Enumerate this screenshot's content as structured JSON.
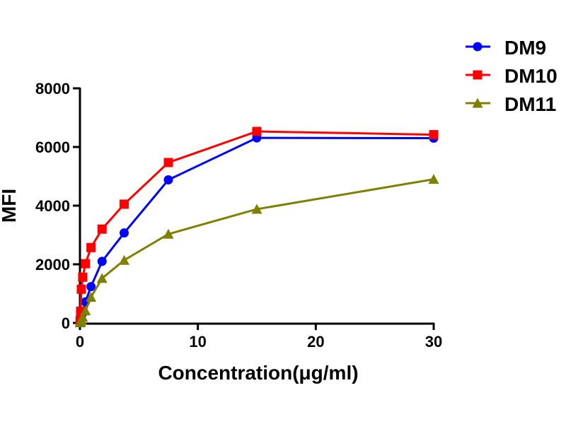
{
  "chart_data": {
    "type": "line",
    "title": "",
    "xlabel": "Concentration(μg/ml)",
    "ylabel": "MFI",
    "xlim": [
      0,
      30
    ],
    "ylim": [
      0,
      8000
    ],
    "xticks": [
      "0",
      "10",
      "20",
      "30"
    ],
    "yticks": [
      "0",
      "2000",
      "4000",
      "6000",
      "8000"
    ],
    "grid": false,
    "legend": "top-right",
    "series": [
      {
        "name": "DM9",
        "color": "#0000FF",
        "marker": "circle",
        "x": [
          0.0146,
          0.0293,
          0.0586,
          0.117,
          0.234,
          0.469,
          0.9375,
          1.875,
          3.75,
          7.5,
          15,
          30
        ],
        "y": [
          20,
          40,
          80,
          160,
          340,
          720,
          1240,
          2100,
          3070,
          4880,
          6310,
          6300
        ]
      },
      {
        "name": "DM10",
        "color": "#FF0000",
        "marker": "square",
        "x": [
          0.0146,
          0.0293,
          0.0586,
          0.117,
          0.234,
          0.469,
          0.9375,
          1.875,
          3.75,
          7.5,
          15,
          30
        ],
        "y": [
          30,
          100,
          400,
          1150,
          1560,
          2020,
          2570,
          3200,
          4050,
          5470,
          6530,
          6420
        ]
      },
      {
        "name": "DM11",
        "color": "#808000",
        "marker": "triangle",
        "x": [
          0.0146,
          0.0293,
          0.0586,
          0.117,
          0.234,
          0.469,
          0.9375,
          1.875,
          3.75,
          7.5,
          15,
          30
        ],
        "y": [
          10,
          20,
          50,
          100,
          200,
          420,
          880,
          1520,
          2140,
          3030,
          3880,
          4900
        ]
      }
    ]
  }
}
